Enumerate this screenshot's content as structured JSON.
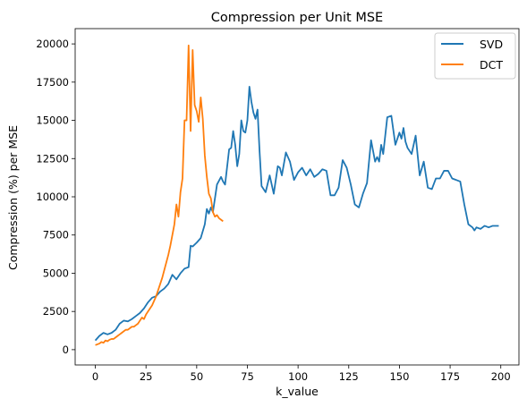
{
  "chart_data": {
    "type": "line",
    "title": "Compression per Unit MSE",
    "xlabel": "k_value",
    "ylabel": "Compression (%) per MSE",
    "xlim": [
      -9.95,
      208.95
    ],
    "ylim": [
      -1000,
      21000
    ],
    "xticks": [
      0,
      25,
      50,
      75,
      100,
      125,
      150,
      175,
      200
    ],
    "yticks": [
      0,
      2500,
      5000,
      7500,
      10000,
      12500,
      15000,
      17500,
      20000
    ],
    "grid": false,
    "legend_position": "top-right",
    "series": [
      {
        "name": "SVD",
        "color": "#1f77b4",
        "x": [
          0,
          2,
          4,
          6,
          8,
          10,
          12,
          14,
          16,
          18,
          20,
          22,
          24,
          26,
          28,
          30,
          32,
          34,
          36,
          38,
          40,
          42,
          44,
          46,
          47,
          48,
          50,
          52,
          54,
          55,
          56,
          57,
          58,
          60,
          62,
          63,
          64,
          66,
          67,
          68,
          69,
          70,
          71,
          72,
          73,
          74,
          75,
          76,
          77,
          78,
          79,
          80,
          81,
          82,
          84,
          86,
          88,
          90,
          91,
          92,
          94,
          96,
          98,
          100,
          102,
          104,
          106,
          108,
          110,
          112,
          114,
          116,
          117,
          118,
          120,
          122,
          124,
          126,
          128,
          129,
          130,
          132,
          134,
          136,
          138,
          139,
          140,
          141,
          142,
          144,
          146,
          148,
          150,
          151,
          152,
          153,
          154,
          156,
          158,
          160,
          162,
          164,
          166,
          168,
          170,
          172,
          174,
          176,
          178,
          180,
          182,
          184,
          186,
          187,
          188,
          190,
          192,
          194,
          196,
          198,
          199
        ],
        "y": [
          600,
          900,
          1100,
          1000,
          1100,
          1300,
          1700,
          1900,
          1850,
          2000,
          2200,
          2400,
          2700,
          3100,
          3400,
          3500,
          3800,
          4000,
          4300,
          4900,
          4600,
          5000,
          5300,
          5400,
          6800,
          6750,
          7000,
          7300,
          8200,
          9200,
          8900,
          9300,
          9000,
          10800,
          11300,
          11000,
          10800,
          13100,
          13200,
          14300,
          13400,
          12000,
          12800,
          15000,
          14300,
          14200,
          15000,
          17200,
          16200,
          15500,
          15100,
          15700,
          13000,
          10700,
          10300,
          11400,
          10200,
          12000,
          11900,
          11400,
          12900,
          12300,
          11100,
          11600,
          11900,
          11400,
          11800,
          11300,
          11500,
          11800,
          11700,
          10100,
          10100,
          10100,
          10600,
          12400,
          11900,
          10800,
          9500,
          9400,
          9300,
          10200,
          10900,
          13700,
          12300,
          12600,
          12300,
          13400,
          12800,
          15200,
          15300,
          13400,
          14200,
          13800,
          14500,
          13600,
          13200,
          12800,
          14000,
          11400,
          12300,
          10600,
          10500,
          11200,
          11200,
          11700,
          11700,
          11200,
          11100,
          11000,
          9500,
          8200,
          8000,
          7800,
          8000,
          7900,
          8100,
          8000,
          8100,
          8100,
          8100
        ]
      },
      {
        "name": "DCT",
        "color": "#ff7f0e",
        "x": [
          0,
          1,
          2,
          3,
          4,
          5,
          6,
          7,
          8,
          9,
          10,
          11,
          12,
          13,
          14,
          15,
          16,
          17,
          18,
          19,
          20,
          21,
          22,
          23,
          24,
          25,
          26,
          27,
          28,
          29,
          30,
          31,
          32,
          33,
          34,
          35,
          36,
          37,
          38,
          39,
          40,
          41,
          42,
          43,
          44,
          45,
          46,
          47,
          48,
          49,
          50,
          51,
          52,
          53,
          54,
          55,
          56,
          57,
          58,
          59,
          60,
          61,
          62,
          63
        ],
        "y": [
          300,
          350,
          400,
          500,
          450,
          600,
          550,
          650,
          700,
          700,
          800,
          900,
          1000,
          1100,
          1200,
          1300,
          1300,
          1400,
          1500,
          1500,
          1600,
          1700,
          1900,
          2100,
          2000,
          2300,
          2500,
          2700,
          2900,
          3200,
          3500,
          3900,
          4300,
          4700,
          5200,
          5700,
          6200,
          6800,
          7500,
          8200,
          9500,
          8700,
          10300,
          11200,
          15000,
          15000,
          19900,
          14300,
          19600,
          16000,
          15600,
          14900,
          16500,
          15100,
          12700,
          11300,
          10200,
          9900,
          9000,
          8700,
          8800,
          8600,
          8500,
          8400
        ]
      }
    ]
  }
}
